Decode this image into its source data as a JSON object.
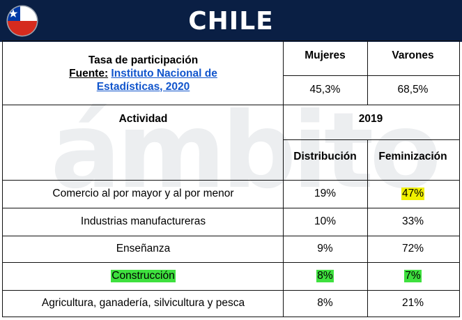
{
  "header": {
    "title": "CHILE"
  },
  "participation": {
    "title": "Tasa de participación",
    "source_label": "Fuente:",
    "source_link": "Instituto Nacional de Estadísticas, 2020",
    "col_women": "Mujeres",
    "col_men": "Varones",
    "women_value": "45,3%",
    "men_value": "68,5%"
  },
  "activity": {
    "header": "Actividad",
    "year": "2019",
    "col_distribution": "Distribución",
    "col_feminization": "Feminización",
    "rows": [
      {
        "name": "Comercio al por mayor y al por menor",
        "distribution": "19%",
        "feminization": "47%"
      },
      {
        "name": "Industrias manufactureras",
        "distribution": "10%",
        "feminization": "33%"
      },
      {
        "name": "Enseñanza",
        "distribution": "9%",
        "feminization": "72%"
      },
      {
        "name": "Construcción",
        "distribution": "8%",
        "feminization": "7%"
      },
      {
        "name": "Agricultura, ganadería, silvicultura y pesca",
        "distribution": "8%",
        "feminization": "21%"
      }
    ]
  },
  "watermark": "ámbito",
  "colors": {
    "header_bg": "#0a1f44",
    "highlight_yellow": "#f0f000",
    "highlight_green": "#3ee03e",
    "link": "#1155cc"
  }
}
